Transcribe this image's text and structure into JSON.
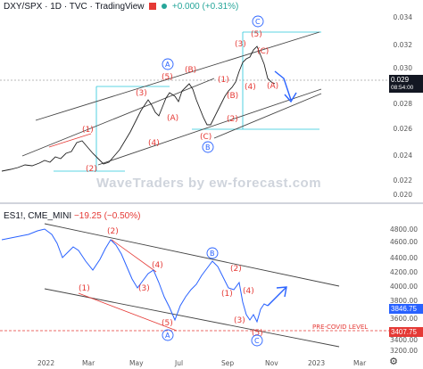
{
  "top_chart": {
    "symbol": "DXY/SPX",
    "interval": "1D",
    "source": "TVC",
    "provider": "TradingView",
    "change": "+0.000 (+0.31%)",
    "y_ticks": [
      "0.034",
      "0.032",
      "0.030",
      "0.028",
      "0.026",
      "0.024",
      "0.022",
      "0.020"
    ],
    "price_label": "0.029",
    "price_time": "08:54:00",
    "wave_labels": [
      "(1)",
      "(2)",
      "(3)",
      "(4)",
      "(5)",
      "(A)",
      "(B)",
      "(C)",
      "A",
      "B",
      "C",
      "(1)",
      "(2)",
      "(3)",
      "(4)",
      "(5)",
      "(A)",
      "(B)",
      "(C)"
    ],
    "watermark": "WaveTraders by ew-forecast.com"
  },
  "bottom_chart": {
    "symbol": "ES1!",
    "exchange": "CME_MINI",
    "change": "−19.25 (−0.50%)",
    "y_ticks": [
      "4800.00",
      "4600.00",
      "4400.00",
      "4200.00",
      "4000.00",
      "3800.00",
      "3600.00",
      "3400.00",
      "3200.00"
    ],
    "price_label": "3846.75",
    "level_label": "3407.75",
    "level_text": "PRE-COVID LEVEL",
    "x_ticks": [
      "2022",
      "Mar",
      "May",
      "Jul",
      "Sep",
      "Nov",
      "2023",
      "Mar"
    ]
  },
  "colors": {
    "wave_red": "#e53935",
    "wave_blue": "#2962ff",
    "bull": "#26a69a"
  },
  "icons": [
    "tradingview-icon",
    "gear-icon",
    "green-status-dot"
  ]
}
